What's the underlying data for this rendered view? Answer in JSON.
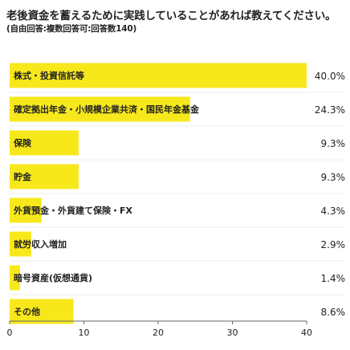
{
  "header": {
    "title": "老後資金を蓄えるために実践していることがあれば教えてください。",
    "subtitle": "(自由回答:複数回答可:回答数140)"
  },
  "colors": {
    "bar": "#f7e81c",
    "gridline": "#dddddd",
    "axis": "#666666"
  },
  "chart_data": {
    "type": "bar",
    "orientation": "horizontal",
    "categories": [
      "株式・投資信託等",
      "確定拠出年金・小規模企業共済・国民年金基金",
      "保険",
      "貯金",
      "外貨預金・外貨建て保険・FX",
      "就労収入増加",
      "暗号資産(仮想通貨)",
      "その他"
    ],
    "values": [
      40.0,
      24.3,
      9.3,
      9.3,
      4.3,
      2.9,
      1.4,
      8.6
    ],
    "value_labels": [
      "40.0%",
      "24.3%",
      "9.3%",
      "9.3%",
      "4.3%",
      "2.9%",
      "1.4%",
      "8.6%"
    ],
    "xlim": [
      0,
      40
    ],
    "xticks": [
      "0",
      "10",
      "20",
      "30",
      "40"
    ],
    "title": "老後資金を蓄えるために実践していることがあれば教えてください。",
    "xlabel": "",
    "ylabel": "",
    "grid": false,
    "legend": "none"
  }
}
